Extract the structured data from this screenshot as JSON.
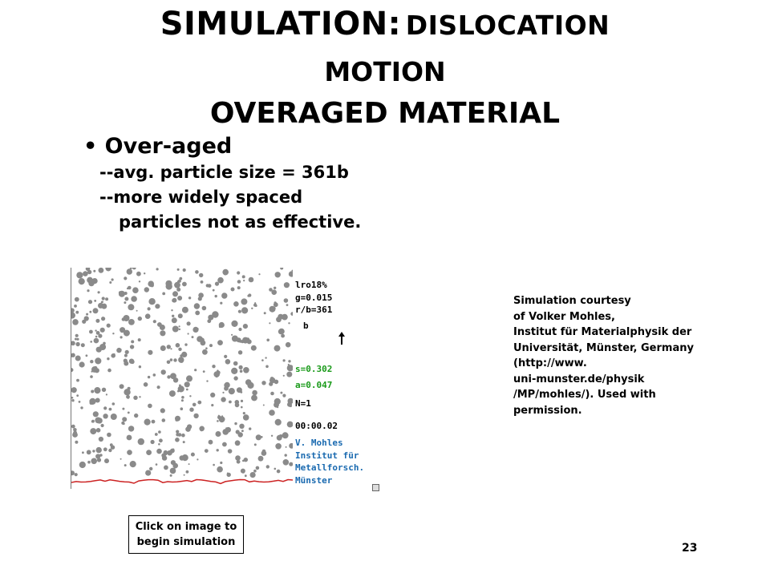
{
  "title": {
    "line1_big": "SIMULATION:",
    "line1_small": "DISLOCATION",
    "line2": "MOTION",
    "line3": "OVERAGED MATERIAL"
  },
  "bullets": {
    "main": "Over-aged",
    "sub1": "--avg. particle size = 361b",
    "sub2": "--more widely spaced",
    "sub3": "particles not as effective."
  },
  "simulation": {
    "readouts": {
      "l1": "lro18%",
      "l2": "g=0.015",
      "l3": "r/b=361",
      "l4": "b",
      "l5": "s=0.302",
      "l6": "a=0.047",
      "l7": "N=1",
      "l8": "00:00.02",
      "l9": "V. Mohles",
      "l10": "Institut für",
      "l11": "Metallforsch.",
      "l12": "Münster"
    },
    "particle_color": "#8a8a8a",
    "dislocation_color": "#cc2222",
    "green": "#1a9a1a",
    "blue": "#1a6ab0"
  },
  "click_prompt": {
    "line1": "Click on image to",
    "line2": "begin simulation"
  },
  "courtesy": {
    "lines": [
      "Simulation courtesy",
      "of Volker Mohles,",
      "Institut für Materialphysik der",
      "Universität, Münster, Germany",
      "(http://www.",
      "uni-munster.de/physik",
      "/MP/mohles/).  Used with",
      "permission."
    ]
  },
  "page_number": "23"
}
